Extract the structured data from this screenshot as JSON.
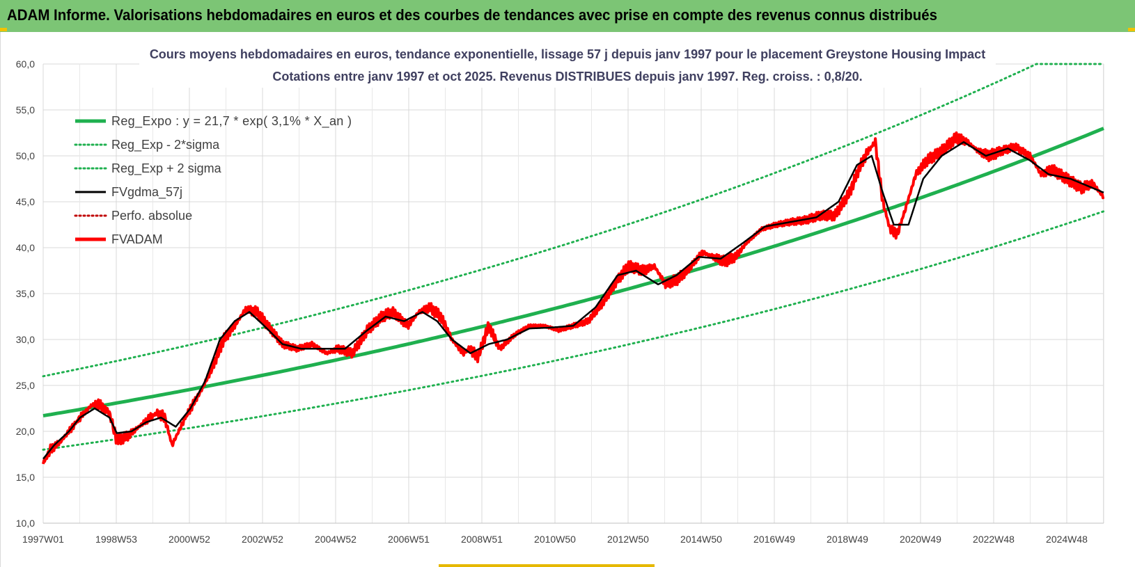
{
  "banner": {
    "title": "ADAM Informe. Valorisations hebdomadaires en euros et des courbes de tendances avec prise en compte des revenus connus distribués"
  },
  "colors": {
    "banner": "#7cc575",
    "trend": "#1fb04f",
    "band": "#1fb04f",
    "smooth": "#000000",
    "perf": "#c00000",
    "price": "#ff0000",
    "accent": "#f2c200"
  },
  "chart_data": {
    "type": "line",
    "title": "Cours moyens hebdomadaires en euros, tendance exponentielle, lissage 57 j depuis janv 1997 pour le placement Greystone Housing Impact",
    "subtitle": "Cotations entre janv 1997 et oct 2025. Revenus DISTRIBUES depuis janv 1997. Reg. croiss. : 0,8/20.",
    "xlabel": "",
    "ylabel": "",
    "ylim": [
      10,
      60
    ],
    "y_ticks": [
      "60,0",
      "55,0",
      "50,0",
      "45,0",
      "40,0",
      "35,0",
      "30,0",
      "25,0",
      "20,0",
      "15,0",
      "10,0"
    ],
    "x_ticks": [
      "1997W01",
      "1998W53",
      "2000W52",
      "2002W52",
      "2004W52",
      "2006W51",
      "2008W51",
      "2010W50",
      "2012W50",
      "2014W50",
      "2016W49",
      "2018W49",
      "2020W49",
      "2022W48",
      "2024W48"
    ],
    "x_range_years": [
      1997.0,
      2025.8
    ],
    "grid": true,
    "legend_position": "top-left",
    "legend": [
      {
        "label": "Reg_Expo : y = 21,7 * exp( 3,1% *  X_an )",
        "style": "solid-thick",
        "color": "#1fb04f"
      },
      {
        "label": "Reg_Exp - 2*sigma",
        "style": "dotted",
        "color": "#1fb04f"
      },
      {
        "label": "Reg_Exp + 2 sigma",
        "style": "dotted",
        "color": "#1fb04f"
      },
      {
        "label": "FVgdma_57j",
        "style": "solid",
        "color": "#000000"
      },
      {
        "label": "Perfo. absolue",
        "style": "dotted",
        "color": "#c00000"
      },
      {
        "label": "FVADAM",
        "style": "solid-thick",
        "color": "#ff0000"
      }
    ],
    "series": [
      {
        "name": "Reg_Expo",
        "type": "exponential",
        "a": 21.7,
        "rate": 0.031
      },
      {
        "name": "Reg_Exp - 2*sigma",
        "type": "exponential",
        "a": 18.0,
        "rate": 0.031
      },
      {
        "name": "Reg_Exp + 2 sigma",
        "type": "exponential",
        "a": 26.0,
        "rate": 0.031,
        "cap": 60
      },
      {
        "name": "FVADAM",
        "x": [
          1997.0,
          1997.2,
          1997.5,
          1997.8,
          1998.0,
          1998.3,
          1998.5,
          1998.8,
          1999.0,
          1999.3,
          1999.6,
          1999.9,
          2000.1,
          2000.3,
          2000.5,
          2000.8,
          2001.0,
          2001.3,
          2001.6,
          2001.9,
          2002.2,
          2002.5,
          2002.8,
          2003.1,
          2003.5,
          2003.9,
          2004.3,
          2004.7,
          2005.0,
          2005.4,
          2005.8,
          2006.2,
          2006.5,
          2006.9,
          2007.2,
          2007.5,
          2007.8,
          2008.1,
          2008.4,
          2008.6,
          2008.8,
          2009.1,
          2009.4,
          2009.8,
          2010.2,
          2010.6,
          2011.0,
          2011.4,
          2011.8,
          2012.2,
          2012.6,
          2012.9,
          2013.3,
          2013.6,
          2013.9,
          2014.2,
          2014.5,
          2014.9,
          2015.2,
          2015.5,
          2015.8,
          2016.1,
          2016.5,
          2016.9,
          2017.3,
          2017.7,
          2018.1,
          2018.5,
          2018.9,
          2019.2,
          2019.4,
          2019.6,
          2019.8,
          2020.0,
          2020.2,
          2020.4,
          2020.7,
          2021.0,
          2021.4,
          2021.8,
          2022.1,
          2022.4,
          2022.7,
          2023.0,
          2023.4,
          2023.8,
          2024.1,
          2024.4,
          2024.8,
          2025.2,
          2025.5,
          2025.8
        ],
        "values": [
          16.5,
          18.0,
          19.0,
          20.5,
          21.5,
          22.8,
          23.0,
          22.0,
          19.0,
          19.5,
          20.5,
          21.5,
          22.0,
          21.5,
          18.5,
          21.0,
          22.5,
          24.5,
          27.0,
          30.0,
          31.5,
          33.3,
          33.0,
          31.5,
          29.5,
          29.0,
          29.5,
          28.5,
          29.0,
          28.5,
          31.0,
          32.5,
          33.0,
          31.5,
          33.0,
          33.5,
          32.5,
          30.0,
          28.5,
          29.0,
          28.0,
          31.5,
          29.0,
          30.5,
          31.5,
          31.5,
          31.0,
          31.5,
          32.0,
          34.0,
          36.5,
          38.0,
          37.5,
          38.0,
          36.0,
          36.5,
          37.5,
          39.5,
          39.0,
          38.5,
          39.0,
          40.5,
          42.0,
          42.5,
          42.8,
          43.0,
          43.5,
          43.5,
          46.0,
          49.0,
          50.5,
          51.5,
          45.0,
          42.0,
          41.5,
          44.0,
          48.0,
          49.5,
          50.5,
          52.0,
          51.5,
          50.5,
          50.0,
          50.5,
          51.0,
          50.0,
          48.0,
          48.5,
          47.5,
          46.5,
          47.0,
          45.5
        ]
      },
      {
        "name": "FVgdma_57j",
        "x": [
          1997.0,
          1997.3,
          1997.7,
          1998.0,
          1998.4,
          1998.8,
          1999.0,
          1999.4,
          1999.8,
          2000.2,
          2000.6,
          2001.0,
          2001.4,
          2001.8,
          2002.2,
          2002.6,
          2003.0,
          2003.5,
          2004.0,
          2004.6,
          2005.2,
          2005.8,
          2006.3,
          2006.8,
          2007.3,
          2007.7,
          2008.1,
          2008.6,
          2009.1,
          2009.6,
          2010.2,
          2010.8,
          2011.4,
          2012.0,
          2012.6,
          2013.1,
          2013.7,
          2014.2,
          2014.8,
          2015.4,
          2016.0,
          2016.6,
          2017.3,
          2018.0,
          2018.6,
          2019.1,
          2019.5,
          2019.8,
          2020.1,
          2020.5,
          2020.9,
          2021.4,
          2022.0,
          2022.6,
          2023.2,
          2023.8,
          2024.3,
          2024.9,
          2025.5,
          2025.8
        ],
        "values": [
          17.0,
          18.5,
          20.0,
          21.5,
          22.5,
          21.5,
          19.8,
          20.0,
          21.0,
          21.5,
          20.5,
          22.5,
          25.5,
          30.0,
          32.0,
          33.0,
          31.5,
          29.5,
          29.0,
          29.0,
          29.0,
          31.0,
          32.5,
          32.0,
          33.0,
          32.0,
          30.0,
          28.5,
          29.5,
          30.0,
          31.2,
          31.3,
          31.5,
          33.5,
          37.0,
          37.5,
          36.0,
          37.0,
          39.0,
          38.8,
          40.5,
          42.3,
          42.8,
          43.3,
          45.0,
          49.0,
          50.0,
          46.0,
          42.5,
          42.5,
          47.5,
          50.0,
          51.5,
          50.0,
          50.8,
          49.5,
          48.0,
          47.5,
          46.5,
          46.0
        ]
      }
    ]
  }
}
